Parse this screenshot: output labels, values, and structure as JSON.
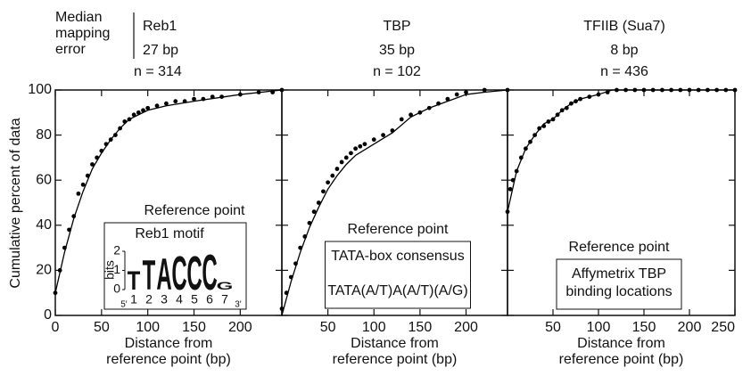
{
  "median_label": [
    "Median",
    "mapping",
    "error"
  ],
  "ylabel": "Cumulative percent of data",
  "chart_data": [
    {
      "type": "scatter",
      "title": "Reb1",
      "median_error": "27 bp",
      "n": "n = 314",
      "xlabel": [
        "Distance from",
        "reference point (bp)"
      ],
      "xlim": [
        0,
        245
      ],
      "ylim": [
        0,
        100
      ],
      "xticks": [
        0,
        50,
        100,
        150,
        200
      ],
      "yticks": [
        0,
        20,
        40,
        60,
        80,
        100
      ],
      "series": [
        {
          "type": "scatter",
          "color": "#000000",
          "x": [
            0,
            5,
            10,
            15,
            20,
            25,
            30,
            35,
            40,
            45,
            50,
            55,
            60,
            65,
            70,
            75,
            80,
            85,
            90,
            95,
            100,
            110,
            120,
            130,
            140,
            150,
            160,
            170,
            180,
            200,
            220,
            235,
            245
          ],
          "values": [
            10,
            20,
            30,
            38,
            44,
            54,
            58,
            62,
            67,
            70,
            73,
            76,
            78,
            80,
            83,
            86,
            87,
            89,
            90,
            91,
            92,
            93,
            94,
            95,
            95,
            96,
            96,
            97,
            97,
            98,
            99,
            99,
            100
          ]
        },
        {
          "type": "line",
          "color": "#000000",
          "x": [
            0,
            10,
            20,
            30,
            40,
            50,
            60,
            70,
            80,
            100,
            120,
            150,
            200,
            245
          ],
          "values": [
            10,
            28,
            43,
            55,
            65,
            72,
            78,
            83,
            87,
            91,
            93,
            95,
            98,
            100
          ]
        }
      ],
      "annotation": {
        "heading": "Reference point",
        "box_title": "Reb1 motif",
        "logo": {
          "ylabel": "bits",
          "ylim": [
            0,
            2
          ],
          "yticks": [
            0,
            1,
            2
          ],
          "letters": [
            "T",
            "T",
            "A",
            "C",
            "C",
            "C",
            "G"
          ],
          "heights": [
            1.0,
            1.6,
            1.7,
            1.8,
            1.8,
            1.9,
            0.4
          ],
          "colors": [
            "#8a8a8a",
            "#555555",
            "#222222",
            "#222222",
            "#222222",
            "#222222",
            "#aaaaaa"
          ],
          "positions": [
            1,
            2,
            3,
            4,
            5,
            6,
            7
          ],
          "ends": [
            "5'",
            "3'"
          ]
        }
      }
    },
    {
      "type": "scatter",
      "title": "TBP",
      "median_error": "35 bp",
      "n": "n = 102",
      "xlabel": [
        "Distance from",
        "reference point (bp)"
      ],
      "xlim": [
        0,
        245
      ],
      "ylim": [
        0,
        100
      ],
      "xticks": [
        50,
        100,
        150,
        200
      ],
      "yticks": [
        0,
        20,
        40,
        60,
        80,
        100
      ],
      "series": [
        {
          "type": "scatter",
          "color": "#000000",
          "x": [
            0,
            5,
            10,
            15,
            20,
            25,
            30,
            35,
            40,
            45,
            50,
            55,
            60,
            65,
            70,
            75,
            80,
            85,
            90,
            100,
            110,
            120,
            130,
            140,
            150,
            160,
            170,
            180,
            190,
            200,
            220,
            245
          ],
          "values": [
            3,
            10,
            17,
            23,
            30,
            35,
            41,
            46,
            50,
            55,
            59,
            62,
            65,
            68,
            70,
            72,
            74,
            75,
            76,
            78,
            80,
            82,
            87,
            89,
            90,
            92,
            94,
            96,
            98,
            99,
            100,
            100
          ]
        },
        {
          "type": "line",
          "color": "#000000",
          "x": [
            0,
            10,
            20,
            30,
            40,
            50,
            60,
            70,
            80,
            100,
            120,
            140,
            160,
            180,
            200,
            220,
            245
          ],
          "values": [
            0,
            15,
            28,
            39,
            48,
            56,
            62,
            67,
            71,
            76,
            81,
            88,
            92,
            95,
            98,
            99,
            100
          ]
        }
      ],
      "annotation": {
        "heading": "Reference point",
        "box_lines": [
          "TATA-box consensus",
          "TATA(A/T)A(A/T)(A/G)"
        ]
      }
    },
    {
      "type": "scatter",
      "title": "TFIIB (Sua7)",
      "median_error": "8 bp",
      "n": "n = 436",
      "xlabel": [
        "Distance from",
        "reference point (bp)"
      ],
      "xlim": [
        0,
        250
      ],
      "ylim": [
        0,
        100
      ],
      "xticks": [
        50,
        100,
        150,
        200,
        250
      ],
      "yticks": [
        0,
        20,
        40,
        60,
        80,
        100
      ],
      "series": [
        {
          "type": "scatter",
          "color": "#000000",
          "x": [
            0,
            3,
            6,
            10,
            15,
            20,
            25,
            30,
            35,
            40,
            45,
            50,
            55,
            60,
            65,
            70,
            75,
            80,
            90,
            100,
            110,
            120,
            130,
            140,
            150,
            160,
            170,
            180,
            190,
            200,
            210,
            220,
            230,
            240,
            250
          ],
          "values": [
            46,
            56,
            60,
            64,
            70,
            74,
            77,
            80,
            83,
            84,
            86,
            87,
            89,
            91,
            92,
            94,
            95,
            96,
            97,
            98,
            99,
            100,
            100,
            100,
            100,
            100,
            100,
            100,
            100,
            100,
            100,
            100,
            100,
            100,
            100
          ]
        },
        {
          "type": "line",
          "color": "#000000",
          "x": [
            0,
            10,
            20,
            30,
            40,
            50,
            60,
            70,
            80,
            100,
            115,
            250
          ],
          "values": [
            46,
            64,
            74,
            80,
            85,
            87,
            91,
            94,
            96,
            98,
            100,
            100
          ]
        }
      ],
      "annotation": {
        "heading": "Reference point",
        "box_lines": [
          "Affymetrix TBP",
          "binding locations"
        ]
      }
    }
  ]
}
